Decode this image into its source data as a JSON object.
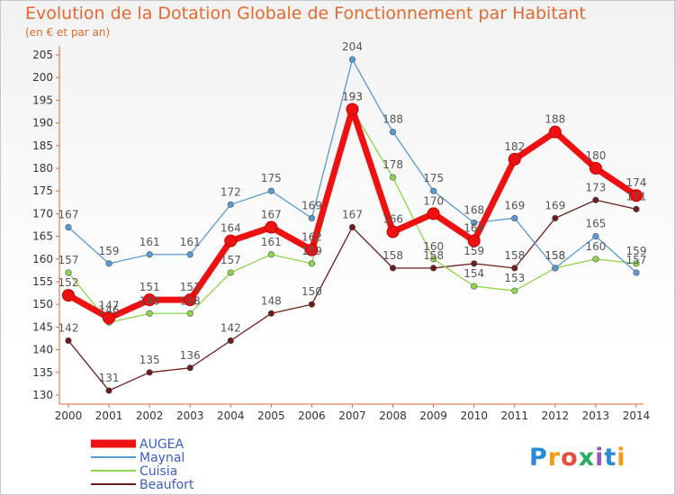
{
  "header": {
    "title": "Evolution de la Dotation Globale de Fonctionnement par Habitant",
    "subtitle": "(en € et par an)"
  },
  "logo": {
    "text": "Proxiti",
    "colors": [
      "#2a8ad6",
      "#f39c12",
      "#e74c3c",
      "#27ae60",
      "#9b59b6",
      "#2a8ad6",
      "#f39c12"
    ]
  },
  "chart_data": {
    "type": "line",
    "title": "Evolution de la Dotation Globale de Fonctionnement par Habitant",
    "subtitle": "(en € et par an)",
    "xlabel": "",
    "ylabel": "",
    "ylim": [
      130,
      205
    ],
    "yticks": [
      130,
      135,
      140,
      145,
      150,
      155,
      160,
      165,
      170,
      175,
      180,
      185,
      190,
      195,
      200,
      205
    ],
    "categories": [
      "2000",
      "2001",
      "2002",
      "2003",
      "2004",
      "2005",
      "2006",
      "2007",
      "2008",
      "2009",
      "2010",
      "2011",
      "2012",
      "2013",
      "2014"
    ],
    "grid": false,
    "legend": "bottom-left",
    "series": [
      {
        "name": "AUGEA",
        "color": "#ee1111",
        "values": [
          152,
          147,
          151,
          151,
          164,
          167,
          162,
          193,
          166,
          170,
          164,
          182,
          188,
          180,
          174
        ]
      },
      {
        "name": "Maynal",
        "color": "#5a9ad0",
        "values": [
          167,
          159,
          161,
          161,
          172,
          175,
          169,
          204,
          188,
          175,
          168,
          169,
          158,
          165,
          157
        ]
      },
      {
        "name": "Cuisia",
        "color": "#8ed44c",
        "values": [
          157,
          146,
          148,
          148,
          157,
          161,
          159,
          193,
          178,
          160,
          154,
          153,
          158,
          160,
          159
        ]
      },
      {
        "name": "Beaufort",
        "color": "#6b1d1d",
        "values": [
          142,
          131,
          135,
          136,
          142,
          148,
          150,
          167,
          158,
          158,
          159,
          158,
          169,
          173,
          171
        ]
      }
    ]
  }
}
